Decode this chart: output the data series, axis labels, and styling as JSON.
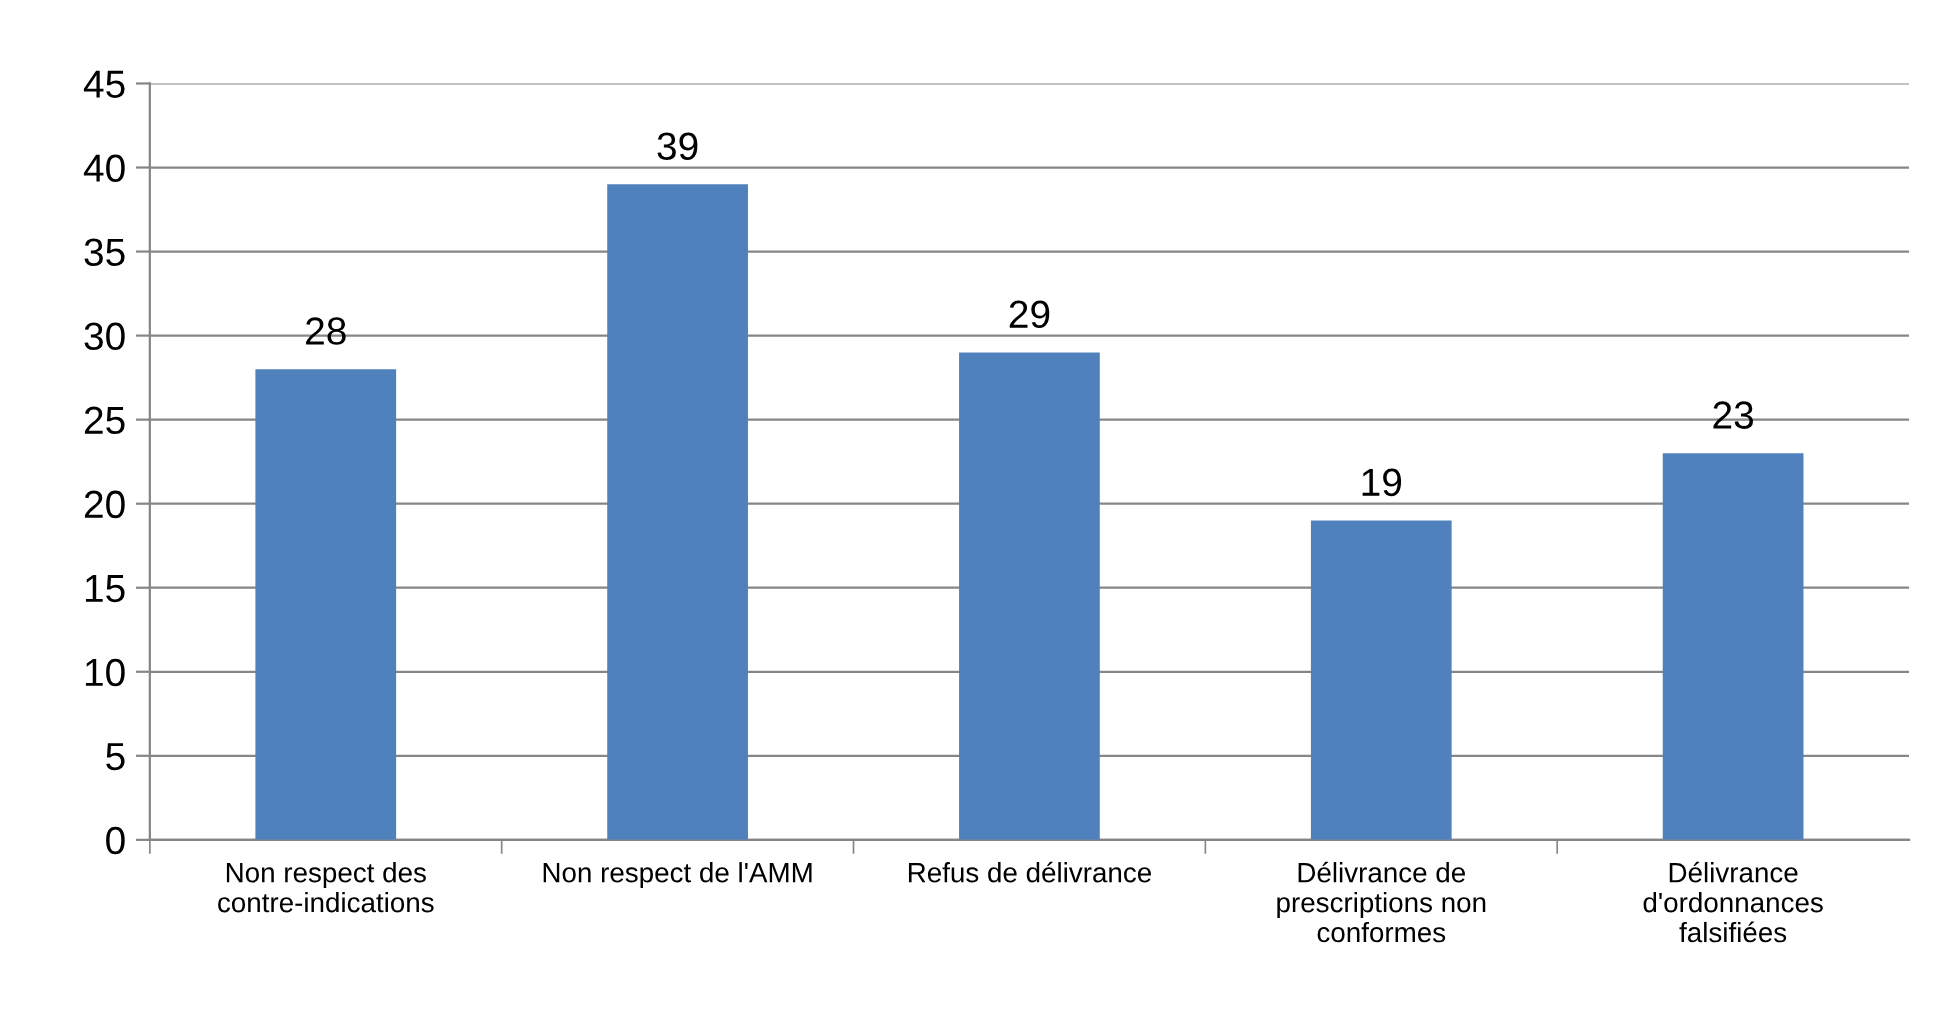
{
  "chart_data": {
    "type": "bar",
    "categories": [
      "Non respect des\ncontre-indications",
      "Non respect de l'AMM",
      "Refus de délivrance",
      "Délivrance de\nprescriptions non\nconformes",
      "Délivrance\nd'ordonnances\nfalsifiées"
    ],
    "values": [
      28,
      39,
      29,
      19,
      23
    ],
    "color": "#4f81bd",
    "ylim": [
      0,
      45
    ],
    "yticks": [
      0,
      5,
      10,
      15,
      20,
      25,
      30,
      35,
      40,
      45
    ],
    "grid": "y",
    "data_labels": true
  }
}
